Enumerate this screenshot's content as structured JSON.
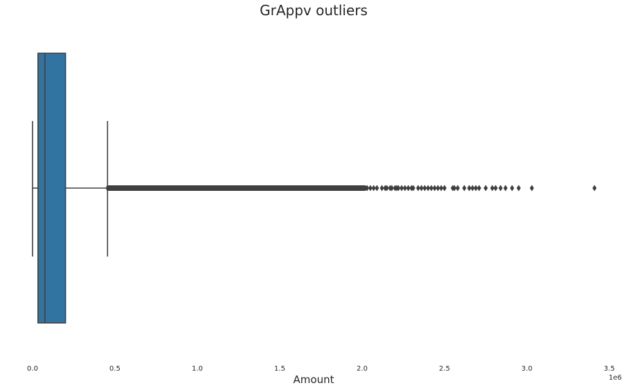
{
  "chart_data": {
    "type": "box",
    "orientation": "horizontal",
    "title": "GrAppv outliers",
    "xlabel": "Amount",
    "offset_label": "1e6",
    "xlim": [
      0.0,
      3.5
    ],
    "xticks": [
      0.0,
      0.5,
      1.0,
      1.5,
      2.0,
      2.5,
      3.0,
      3.5
    ],
    "xtick_labels": [
      "0.0",
      "0.5",
      "1.0",
      "1.5",
      "2.0",
      "2.5",
      "3.0",
      "3.5"
    ],
    "grid": false,
    "box": {
      "color": "#3274a1",
      "edge_color": "#3f3f3f",
      "whisker_low": 0.0,
      "q1": 0.033,
      "median": 0.075,
      "q3": 0.2,
      "whisker_high": 0.455
    },
    "outliers_dense_range": [
      0.455,
      2.02
    ],
    "outliers": [
      2.03,
      2.05,
      2.07,
      2.09,
      2.12,
      2.14,
      2.15,
      2.17,
      2.18,
      2.2,
      2.21,
      2.22,
      2.24,
      2.26,
      2.28,
      2.3,
      2.31,
      2.34,
      2.36,
      2.38,
      2.4,
      2.42,
      2.44,
      2.46,
      2.48,
      2.5,
      2.55,
      2.56,
      2.58,
      2.62,
      2.65,
      2.67,
      2.69,
      2.71,
      2.75,
      2.79,
      2.81,
      2.84,
      2.87,
      2.91,
      2.95,
      3.03,
      3.41
    ]
  }
}
